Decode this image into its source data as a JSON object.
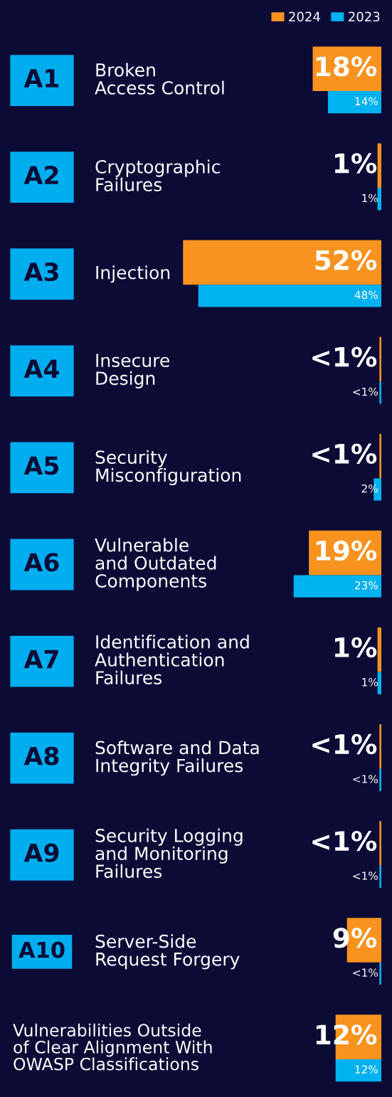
{
  "chart_data": {
    "type": "bar",
    "orientation": "horizontal",
    "categories": [
      "Broken\nAccess Control",
      "Cryptographic\nFailures",
      "Injection",
      "Insecure\nDesign",
      "Security\nMisconfiguration",
      "Vulnerable\nand Outdated\nComponents",
      "Identification and\nAuthentication\nFailures",
      "Software and Data\nIntegrity Failures",
      "Security Logging\nand Monitoring\nFailures",
      "Server-Side\nRequest Forgery",
      "Vulnerabilities Outside\nof Clear Alignment With\nOWASP Classifications"
    ],
    "series": [
      {
        "name": "2024",
        "color": "#f7931e",
        "values": [
          18,
          1,
          52,
          0.5,
          0.5,
          19,
          1,
          0.5,
          0.5,
          9,
          12
        ],
        "value_labels": [
          "18%",
          "1%",
          "52%",
          "<1%",
          "<1%",
          "19%",
          "1%",
          "<1%",
          "<1%",
          "9%",
          "12%"
        ]
      },
      {
        "name": "2023",
        "color": "#00b2f0",
        "values": [
          14,
          1,
          48,
          0.5,
          2,
          23,
          1,
          0.5,
          0.5,
          0.5,
          12
        ],
        "value_labels": [
          "14%",
          "1%",
          "48%",
          "<1%",
          "2%",
          "23%",
          "1%",
          "<1%",
          "<1%",
          "<1%",
          "12%"
        ]
      }
    ],
    "xlim": [
      100,
      0
    ],
    "legend": "top right",
    "annotations": [
      "A1",
      "A2",
      "A3",
      "A4",
      "A5",
      "A6",
      "A7",
      "A8",
      "A9",
      "A10"
    ]
  }
}
